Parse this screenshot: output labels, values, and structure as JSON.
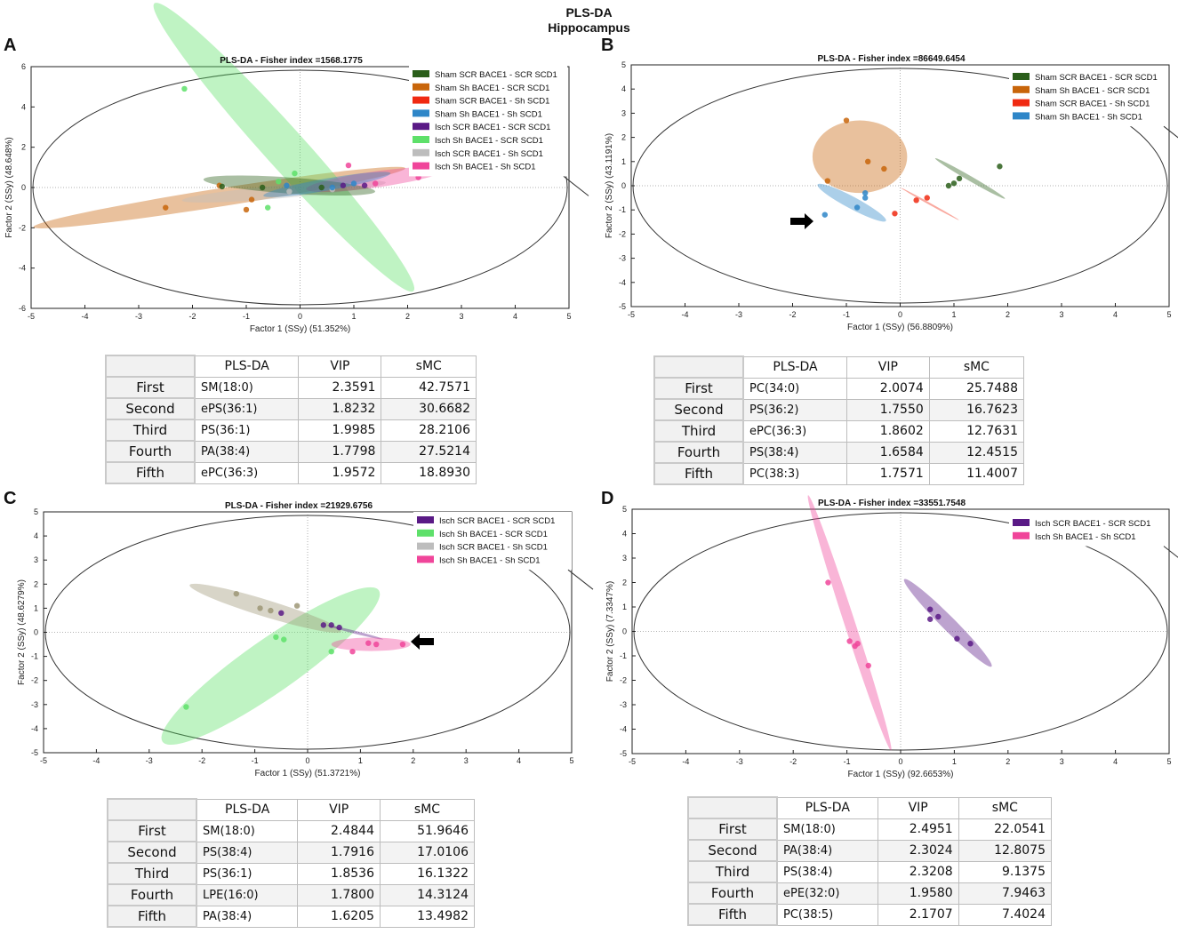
{
  "figure": {
    "title_line1": "PLS-DA",
    "title_line2": "Hippocampus"
  },
  "colors": {
    "sham_scr_bace1_scr_scd1": "#2a5e1a",
    "sham_sh_bace1_scr_scd1": "#c8650a",
    "sham_scr_bace1_sh_scd1": "#f02a12",
    "sham_sh_bace1_sh_scd1": "#2e86c8",
    "isch_scr_bace1_scr_scd1": "#5a1a86",
    "isch_sh_bace1_scr_scd1": "#5ee06a",
    "isch_scr_bace1_sh_scd1": "#bdbdbd",
    "isch_sh_bace1_sh_scd1": "#f0459a"
  },
  "chart_data": [
    {
      "panel": "A",
      "type": "scatter",
      "title": "PLS-DA - Fisher index =1568.1775",
      "xlabel": "Factor 1 (SSy) (51.352%)",
      "ylabel": "Factor 2 (SSy) (48.648%)",
      "xlim": [
        -5,
        5
      ],
      "ylim": [
        -6,
        6
      ],
      "xticks": [
        -5,
        -4,
        -3,
        -2,
        -1,
        0,
        1,
        2,
        3,
        4,
        5
      ],
      "yticks": [
        -6,
        -4,
        -2,
        0,
        2,
        4,
        6
      ],
      "legend": [
        "Sham SCR BACE1 - SCR SCD1",
        "Sham Sh BACE1 - SCR SCD1",
        "Sham SCR BACE1 - Sh SCD1",
        "Sham Sh BACE1 - Sh SCD1",
        "Isch SCR BACE1 - SCR SCD1",
        "Isch Sh BACE1 - SCR SCD1",
        "Isch SCR BACE1 - Sh SCD1",
        "Isch Sh BACE1 - Sh SCD1"
      ],
      "legend_colors": [
        "#2a5e1a",
        "#c8650a",
        "#f02a12",
        "#2e86c8",
        "#5a1a86",
        "#5ee06a",
        "#bdbdbd",
        "#f0459a"
      ],
      "ellipses": [
        {
          "cx": -1.5,
          "cy": -0.5,
          "rx": 3.5,
          "ry": 0.45,
          "angle": 9,
          "color": "#c8650a"
        },
        {
          "cx": -0.3,
          "cy": 2.0,
          "rx": 3.6,
          "ry": 1.0,
          "angle": -48,
          "color": "#5ee06a"
        },
        {
          "cx": -0.3,
          "cy": -0.2,
          "rx": 1.9,
          "ry": 0.32,
          "angle": 5,
          "color": "#bdbdbd"
        },
        {
          "cx": 1.4,
          "cy": 0.4,
          "rx": 1.3,
          "ry": 0.4,
          "angle": 8,
          "color": "#f0459a"
        },
        {
          "cx": -0.2,
          "cy": 0.1,
          "rx": 1.6,
          "ry": 0.4,
          "angle": -4,
          "color": "#2a5e1a"
        },
        {
          "cx": 0.5,
          "cy": 0.15,
          "rx": 1.2,
          "ry": 0.3,
          "angle": 10,
          "color": "#2e86c8"
        }
      ],
      "points": [
        {
          "x": -2.5,
          "y": -1.0,
          "color": "#c8650a"
        },
        {
          "x": -1.5,
          "y": 0.1,
          "color": "#c8650a"
        },
        {
          "x": -0.9,
          "y": -0.6,
          "color": "#c8650a"
        },
        {
          "x": -1.0,
          "y": -1.1,
          "color": "#c8650a"
        },
        {
          "x": -2.15,
          "y": 4.9,
          "color": "#5ee06a"
        },
        {
          "x": -0.1,
          "y": 0.7,
          "color": "#5ee06a"
        },
        {
          "x": -0.4,
          "y": 0.3,
          "color": "#5ee06a"
        },
        {
          "x": -0.6,
          "y": -1.0,
          "color": "#5ee06a"
        },
        {
          "x": 0.9,
          "y": 1.1,
          "color": "#f0459a"
        },
        {
          "x": 2.2,
          "y": 0.5,
          "color": "#f0459a"
        },
        {
          "x": 1.4,
          "y": 0.2,
          "color": "#f0459a"
        },
        {
          "x": -1.45,
          "y": 0.05,
          "color": "#2a5e1a"
        },
        {
          "x": -0.7,
          "y": 0.0,
          "color": "#2a5e1a"
        },
        {
          "x": 0.4,
          "y": 0.0,
          "color": "#2a5e1a"
        },
        {
          "x": -0.2,
          "y": -0.2,
          "color": "#bdbdbd"
        },
        {
          "x": 0.6,
          "y": -0.1,
          "color": "#bdbdbd"
        },
        {
          "x": -0.25,
          "y": 0.1,
          "color": "#2e86c8"
        },
        {
          "x": 0.6,
          "y": 0.0,
          "color": "#2e86c8"
        },
        {
          "x": 1.0,
          "y": 0.2,
          "color": "#2e86c8"
        },
        {
          "x": 0.8,
          "y": 0.1,
          "color": "#5a1a86"
        },
        {
          "x": 1.2,
          "y": 0.1,
          "color": "#5a1a86"
        }
      ],
      "table": {
        "header": [
          "PLS-DA",
          "VIP",
          "sMC"
        ],
        "rows": [
          {
            "rank": "First",
            "lipid": "SM(18:0)",
            "vip": "2.3591",
            "smc": "42.7571"
          },
          {
            "rank": "Second",
            "lipid": "ePS(36:1)",
            "vip": "1.8232",
            "smc": "30.6682"
          },
          {
            "rank": "Third",
            "lipid": "PS(36:1)",
            "vip": "1.9985",
            "smc": "28.2106"
          },
          {
            "rank": "Fourth",
            "lipid": "PA(38:4)",
            "vip": "1.7798",
            "smc": "27.5214"
          },
          {
            "rank": "Fifth",
            "lipid": "ePC(36:3)",
            "vip": "1.9572",
            "smc": "18.8930"
          }
        ]
      }
    },
    {
      "panel": "B",
      "type": "scatter",
      "title": "PLS-DA - Fisher index =86649.6454",
      "xlabel": "Factor 1 (SSy) (56.8809%)",
      "ylabel": "Factor 2 (SSy) (43.1191%)",
      "xlim": [
        -5,
        5
      ],
      "ylim": [
        -5,
        5
      ],
      "xticks": [
        -5,
        -4,
        -3,
        -2,
        -1,
        0,
        1,
        2,
        3,
        4,
        5
      ],
      "yticks": [
        -5,
        -4,
        -3,
        -2,
        -1,
        0,
        1,
        2,
        3,
        4,
        5
      ],
      "legend": [
        "Sham SCR BACE1 - SCR SCD1",
        "Sham Sh BACE1 - SCR SCD1",
        "Sham SCR BACE1 - Sh SCD1",
        "Sham Sh BACE1 - Sh SCD1"
      ],
      "legend_colors": [
        "#2a5e1a",
        "#c8650a",
        "#f02a12",
        "#2e86c8"
      ],
      "ellipses": [
        {
          "cx": -0.75,
          "cy": 1.2,
          "rx": 0.88,
          "ry": 1.5,
          "angle": 0,
          "color": "#c8650a"
        },
        {
          "cx": -0.9,
          "cy": -0.7,
          "rx": 0.72,
          "ry": 0.25,
          "angle": -28,
          "color": "#2e86c8"
        },
        {
          "cx": 1.3,
          "cy": 0.3,
          "rx": 0.75,
          "ry": 0.1,
          "angle": -30,
          "color": "#2a5e1a"
        },
        {
          "cx": 0.55,
          "cy": -0.75,
          "rx": 0.62,
          "ry": 0.04,
          "angle": -29,
          "color": "#f02a12"
        }
      ],
      "points": [
        {
          "x": -1.0,
          "y": 2.7,
          "color": "#c8650a"
        },
        {
          "x": -0.6,
          "y": 1.0,
          "color": "#c8650a"
        },
        {
          "x": -1.35,
          "y": 0.2,
          "color": "#c8650a"
        },
        {
          "x": -0.3,
          "y": 0.7,
          "color": "#c8650a"
        },
        {
          "x": -1.4,
          "y": -1.2,
          "color": "#2e86c8"
        },
        {
          "x": -0.8,
          "y": -0.9,
          "color": "#2e86c8"
        },
        {
          "x": -0.65,
          "y": -0.5,
          "color": "#2e86c8"
        },
        {
          "x": -0.65,
          "y": -0.3,
          "color": "#2e86c8"
        },
        {
          "x": 0.9,
          "y": 0.0,
          "color": "#2a5e1a"
        },
        {
          "x": 1.0,
          "y": 0.1,
          "color": "#2a5e1a"
        },
        {
          "x": 1.1,
          "y": 0.3,
          "color": "#2a5e1a"
        },
        {
          "x": 1.85,
          "y": 0.8,
          "color": "#2a5e1a"
        },
        {
          "x": -0.1,
          "y": -1.15,
          "color": "#f02a12"
        },
        {
          "x": 0.3,
          "y": -0.6,
          "color": "#f02a12"
        },
        {
          "x": 0.5,
          "y": -0.5,
          "color": "#f02a12"
        }
      ],
      "table": {
        "header": [
          "PLS-DA",
          "VIP",
          "sMC"
        ],
        "rows": [
          {
            "rank": "First",
            "lipid": "PC(34:0)",
            "vip": "2.0074",
            "smc": "25.7488"
          },
          {
            "rank": "Second",
            "lipid": "PS(36:2)",
            "vip": "1.7550",
            "smc": "16.7623"
          },
          {
            "rank": "Third",
            "lipid": "ePC(36:3)",
            "vip": "1.8602",
            "smc": "12.7631"
          },
          {
            "rank": "Fourth",
            "lipid": "PS(38:4)",
            "vip": "1.6584",
            "smc": "12.4515"
          },
          {
            "rank": "Fifth",
            "lipid": "PC(38:3)",
            "vip": "1.7571",
            "smc": "11.4007"
          }
        ]
      }
    },
    {
      "panel": "C",
      "type": "scatter",
      "title": "PLS-DA - Fisher index =21929.6756",
      "xlabel": "Factor 1 (SSy) (51.3721%)",
      "ylabel": "Factor 2 (SSy) (48.6279%)",
      "xlim": [
        -5,
        5
      ],
      "ylim": [
        -5,
        5
      ],
      "xticks": [
        -5,
        -4,
        -3,
        -2,
        -1,
        0,
        1,
        2,
        3,
        4,
        5
      ],
      "yticks": [
        -5,
        -4,
        -3,
        -2,
        -1,
        0,
        1,
        2,
        3,
        4,
        5
      ],
      "legend": [
        "Isch SCR BACE1 - SCR SCD1",
        "Isch Sh BACE1 - SCR SCD1",
        "Isch SCR BACE1 - Sh SCD1",
        "Isch Sh BACE1 - Sh SCD1"
      ],
      "legend_colors": [
        "#5a1a86",
        "#5ee06a",
        "#bdbdbd",
        "#f0459a"
      ],
      "ellipses": [
        {
          "cx": -0.7,
          "cy": -1.4,
          "rx": 2.5,
          "ry": 1.1,
          "angle": 35,
          "color": "#5ee06a"
        },
        {
          "cx": -0.8,
          "cy": 1.0,
          "rx": 1.5,
          "ry": 0.35,
          "angle": -17,
          "color": "#9e9675"
        },
        {
          "cx": 0.9,
          "cy": 0.0,
          "rx": 0.55,
          "ry": 0.06,
          "angle": -14,
          "color": "#5a1a86"
        },
        {
          "cx": 1.2,
          "cy": -0.5,
          "rx": 0.75,
          "ry": 0.28,
          "angle": 0,
          "color": "#f0459a"
        }
      ],
      "points": [
        {
          "x": -1.35,
          "y": 1.6,
          "color": "#9e9675"
        },
        {
          "x": -0.9,
          "y": 1.0,
          "color": "#9e9675"
        },
        {
          "x": -0.7,
          "y": 0.9,
          "color": "#9e9675"
        },
        {
          "x": -0.2,
          "y": 1.1,
          "color": "#9e9675"
        },
        {
          "x": -0.5,
          "y": 0.8,
          "color": "#5a1a86"
        },
        {
          "x": 0.3,
          "y": 0.3,
          "color": "#5a1a86"
        },
        {
          "x": 0.45,
          "y": 0.3,
          "color": "#5a1a86"
        },
        {
          "x": 0.6,
          "y": 0.2,
          "color": "#5a1a86"
        },
        {
          "x": -2.3,
          "y": -3.1,
          "color": "#5ee06a"
        },
        {
          "x": -0.6,
          "y": -0.2,
          "color": "#5ee06a"
        },
        {
          "x": -0.45,
          "y": -0.3,
          "color": "#5ee06a"
        },
        {
          "x": 0.45,
          "y": -0.8,
          "color": "#5ee06a"
        },
        {
          "x": 0.85,
          "y": -0.8,
          "color": "#f0459a"
        },
        {
          "x": 1.15,
          "y": -0.45,
          "color": "#f0459a"
        },
        {
          "x": 1.3,
          "y": -0.5,
          "color": "#f0459a"
        },
        {
          "x": 1.8,
          "y": -0.5,
          "color": "#f0459a"
        }
      ],
      "table": {
        "header": [
          "PLS-DA",
          "VIP",
          "sMC"
        ],
        "rows": [
          {
            "rank": "First",
            "lipid": "SM(18:0)",
            "vip": "2.4844",
            "smc": "51.9646"
          },
          {
            "rank": "Second",
            "lipid": "PS(38:4)",
            "vip": "1.7916",
            "smc": "17.0106"
          },
          {
            "rank": "Third",
            "lipid": "PS(36:1)",
            "vip": "1.8536",
            "smc": "16.1322"
          },
          {
            "rank": "Fourth",
            "lipid": "LPE(16:0)",
            "vip": "1.7800",
            "smc": "14.3124"
          },
          {
            "rank": "Fifth",
            "lipid": "PA(38:4)",
            "vip": "1.6205",
            "smc": "13.4982"
          }
        ]
      }
    },
    {
      "panel": "D",
      "type": "scatter",
      "title": "PLS-DA - Fisher index =33551.7548",
      "xlabel": "Factor 1 (SSy) (92.6653%)",
      "ylabel": "Factor 2 (SSy) (7.3347%)",
      "xlim": [
        -5,
        5
      ],
      "ylim": [
        -5,
        5
      ],
      "xticks": [
        -5,
        -4,
        -3,
        -2,
        -1,
        0,
        1,
        2,
        3,
        4,
        5
      ],
      "yticks": [
        -5,
        -4,
        -3,
        -2,
        -1,
        0,
        1,
        2,
        3,
        4,
        5
      ],
      "legend": [
        "Isch SCR BACE1 - SCR SCD1",
        "Isch Sh BACE1 - Sh SCD1"
      ],
      "legend_colors": [
        "#5a1a86",
        "#f0459a"
      ],
      "ellipses": [
        {
          "cx": -0.95,
          "cy": 0.35,
          "rx": 2.5,
          "ry": 0.22,
          "angle": -72,
          "color": "#f0459a"
        },
        {
          "cx": 0.88,
          "cy": 0.35,
          "rx": 1.15,
          "ry": 0.28,
          "angle": -45,
          "color": "#5a1a86"
        }
      ],
      "points": [
        {
          "x": -1.35,
          "y": 2.0,
          "color": "#f0459a"
        },
        {
          "x": -0.95,
          "y": -0.4,
          "color": "#f0459a"
        },
        {
          "x": -0.85,
          "y": -0.6,
          "color": "#f0459a"
        },
        {
          "x": -0.8,
          "y": -0.5,
          "color": "#f0459a"
        },
        {
          "x": -0.6,
          "y": -1.4,
          "color": "#f0459a"
        },
        {
          "x": 0.55,
          "y": 0.9,
          "color": "#5a1a86"
        },
        {
          "x": 0.7,
          "y": 0.6,
          "color": "#5a1a86"
        },
        {
          "x": 0.55,
          "y": 0.5,
          "color": "#5a1a86"
        },
        {
          "x": 1.05,
          "y": -0.3,
          "color": "#5a1a86"
        },
        {
          "x": 1.3,
          "y": -0.5,
          "color": "#5a1a86"
        }
      ],
      "table": {
        "header": [
          "PLS-DA",
          "VIP",
          "sMC"
        ],
        "rows": [
          {
            "rank": "First",
            "lipid": "SM(18:0)",
            "vip": "2.4951",
            "smc": "22.0541"
          },
          {
            "rank": "Second",
            "lipid": "PA(38:4)",
            "vip": "2.3024",
            "smc": "12.8075"
          },
          {
            "rank": "Third",
            "lipid": "PS(38:4)",
            "vip": "2.3208",
            "smc": "9.1375"
          },
          {
            "rank": "Fourth",
            "lipid": "ePE(32:0)",
            "vip": "1.9580",
            "smc": "7.9463"
          },
          {
            "rank": "Fifth",
            "lipid": "PC(38:5)",
            "vip": "2.1707",
            "smc": "7.4024"
          }
        ]
      }
    }
  ]
}
